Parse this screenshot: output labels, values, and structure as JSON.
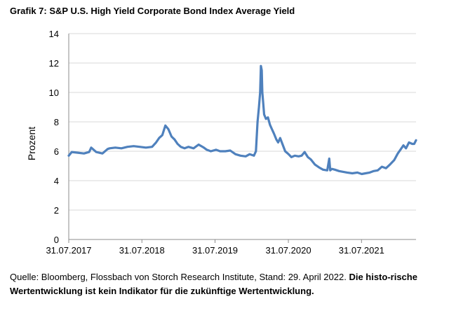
{
  "title": "Grafik 7: S&P U.S. High Yield Corporate Bond Index Average Yield",
  "source": {
    "normal": "Quelle: Bloomberg, Flossbach von Storch Research Institute, Stand: 29. April 2022. ",
    "bold": "Die histo-rische Wertentwicklung ist kein Indikator für die zukünftige Wertentwicklung."
  },
  "colors": {
    "line": "#4f81bd",
    "grid": "#d9d9d9"
  },
  "chart_data": {
    "type": "line",
    "title": "Grafik 7: S&P U.S. High Yield Corporate Bond Index Average Yield",
    "xlabel": "",
    "ylabel": "Prozent",
    "ylim": [
      0,
      14
    ],
    "yticks": [
      0,
      2,
      4,
      6,
      8,
      10,
      12,
      14
    ],
    "xlim": [
      "2017-07-31",
      "2022-04-29"
    ],
    "xticks": [
      "31.07.2017",
      "31.07.2018",
      "31.07.2019",
      "31.07.2020",
      "31.07.2021"
    ],
    "grid": "horizontal",
    "series": [
      {
        "x": [
          "2017-07-31",
          "2017-08-15",
          "2017-09-15",
          "2017-10-15",
          "2017-11-10",
          "2017-11-20",
          "2017-12-15",
          "2018-01-15",
          "2018-02-10",
          "2018-02-20",
          "2018-03-20",
          "2018-04-20",
          "2018-05-20",
          "2018-06-20",
          "2018-07-20",
          "2018-08-20",
          "2018-09-20",
          "2018-10-10",
          "2018-10-25",
          "2018-11-10",
          "2018-11-25",
          "2018-12-10",
          "2018-12-26",
          "2019-01-10",
          "2019-01-25",
          "2019-02-10",
          "2019-03-01",
          "2019-03-20",
          "2019-04-15",
          "2019-05-10",
          "2019-06-05",
          "2019-06-20",
          "2019-07-10",
          "2019-08-05",
          "2019-08-25",
          "2019-09-20",
          "2019-10-15",
          "2019-11-10",
          "2019-12-05",
          "2019-12-31",
          "2020-01-20",
          "2020-02-10",
          "2020-02-20",
          "2020-02-28",
          "2020-03-06",
          "2020-03-12",
          "2020-03-16",
          "2020-03-20",
          "2020-03-23",
          "2020-03-26",
          "2020-04-01",
          "2020-04-10",
          "2020-04-20",
          "2020-04-30",
          "2020-05-10",
          "2020-05-20",
          "2020-06-01",
          "2020-06-10",
          "2020-06-20",
          "2020-07-01",
          "2020-07-15",
          "2020-08-01",
          "2020-08-15",
          "2020-09-01",
          "2020-09-20",
          "2020-10-05",
          "2020-10-20",
          "2020-11-05",
          "2020-11-20",
          "2020-12-10",
          "2020-12-31",
          "2021-01-20",
          "2021-02-10",
          "2021-02-20",
          "2021-02-25",
          "2021-03-05",
          "2021-03-20",
          "2021-04-10",
          "2021-05-01",
          "2021-05-20",
          "2021-06-15",
          "2021-07-10",
          "2021-08-01",
          "2021-08-20",
          "2021-09-10",
          "2021-09-30",
          "2021-10-20",
          "2021-11-10",
          "2021-11-30",
          "2021-12-20",
          "2022-01-10",
          "2022-01-28",
          "2022-02-10",
          "2022-02-25",
          "2022-03-10",
          "2022-03-25",
          "2022-04-10",
          "2022-04-20",
          "2022-04-29"
        ],
        "values": [
          5.7,
          5.95,
          5.9,
          5.85,
          5.95,
          6.25,
          5.95,
          5.85,
          6.15,
          6.2,
          6.25,
          6.2,
          6.3,
          6.35,
          6.3,
          6.25,
          6.3,
          6.6,
          6.9,
          7.1,
          7.75,
          7.5,
          7.0,
          6.8,
          6.5,
          6.3,
          6.2,
          6.3,
          6.2,
          6.45,
          6.25,
          6.1,
          6.0,
          6.1,
          6.0,
          6.0,
          6.05,
          5.8,
          5.7,
          5.65,
          5.8,
          5.7,
          6.0,
          8.0,
          9.0,
          10.0,
          11.8,
          11.5,
          10.0,
          9.5,
          8.5,
          8.2,
          8.3,
          7.8,
          7.5,
          7.2,
          6.8,
          6.6,
          6.9,
          6.5,
          6.0,
          5.8,
          5.6,
          5.7,
          5.65,
          5.7,
          5.95,
          5.6,
          5.45,
          5.1,
          4.9,
          4.75,
          4.7,
          5.5,
          4.7,
          4.8,
          4.75,
          4.65,
          4.6,
          4.55,
          4.5,
          4.55,
          4.45,
          4.5,
          4.55,
          4.65,
          4.7,
          4.95,
          4.85,
          5.1,
          5.4,
          5.85,
          6.1,
          6.4,
          6.2,
          6.6,
          6.5,
          6.5,
          6.75
        ]
      }
    ]
  }
}
